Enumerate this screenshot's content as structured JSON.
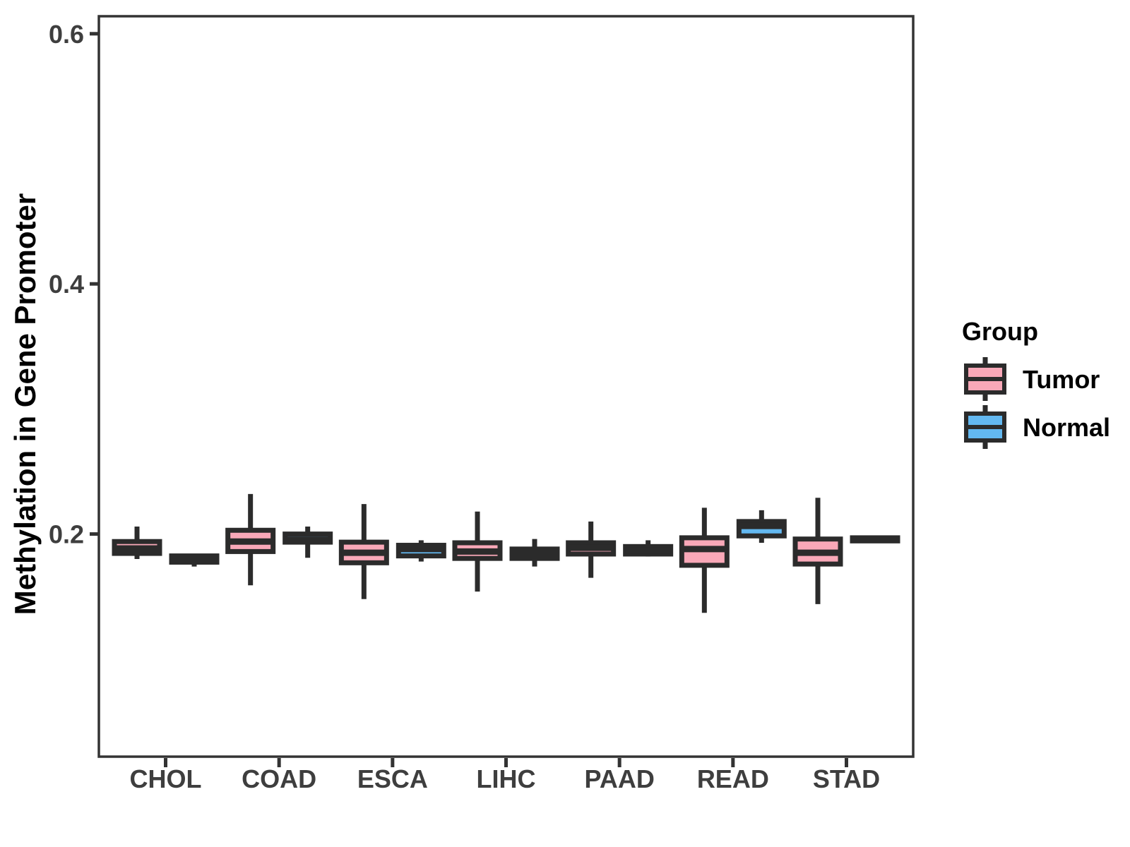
{
  "figure": {
    "background": "#FFFFFF"
  },
  "chart_data": {
    "type": "boxplot",
    "title": "",
    "xlabel": "",
    "ylabel": "Methylation in Gene Promoter",
    "categories": [
      "CHOL",
      "COAD",
      "ESCA",
      "LIHC",
      "PAAD",
      "READ",
      "STAD"
    ],
    "yticks": [
      0.2,
      0.4,
      0.6
    ],
    "ytick_labels": [
      "0.2",
      "0.4",
      "0.6"
    ],
    "ylim": [
      0.022,
      0.614
    ],
    "grid": false,
    "legend": {
      "title": "Group",
      "position": "right",
      "entries": [
        {
          "label": "Tumor",
          "fill": "#F9A8B8"
        },
        {
          "label": "Normal",
          "fill": "#63B8F0"
        }
      ]
    },
    "colors": {
      "tumor_fill": "#F9A8B8",
      "normal_fill": "#63B8F0",
      "box_stroke": "#2B2B2B",
      "axis_line": "#333333",
      "axis_text": "#3E3E3E",
      "title_text": "#000000"
    },
    "series": [
      {
        "name": "Tumor",
        "fill": "#F9A8B8",
        "boxes": [
          {
            "category": "CHOL",
            "lo": 0.18,
            "q1": 0.1845,
            "med": 0.1885,
            "q3": 0.194,
            "hi": 0.206
          },
          {
            "category": "COAD",
            "lo": 0.159,
            "q1": 0.186,
            "med": 0.194,
            "q3": 0.203,
            "hi": 0.232
          },
          {
            "category": "ESCA",
            "lo": 0.148,
            "q1": 0.177,
            "med": 0.185,
            "q3": 0.1935,
            "hi": 0.224
          },
          {
            "category": "LIHC",
            "lo": 0.154,
            "q1": 0.1805,
            "med": 0.186,
            "q3": 0.193,
            "hi": 0.218
          },
          {
            "category": "PAAD",
            "lo": 0.165,
            "q1": 0.184,
            "med": 0.189,
            "q3": 0.193,
            "hi": 0.21
          },
          {
            "category": "READ",
            "lo": 0.137,
            "q1": 0.175,
            "med": 0.188,
            "q3": 0.197,
            "hi": 0.221
          },
          {
            "category": "STAD",
            "lo": 0.144,
            "q1": 0.176,
            "med": 0.185,
            "q3": 0.196,
            "hi": 0.229
          }
        ]
      },
      {
        "name": "Normal",
        "fill": "#63B8F0",
        "boxes": [
          {
            "category": "CHOL",
            "lo": 0.174,
            "q1": 0.1775,
            "med": 0.18,
            "q3": 0.1825,
            "hi": 0.1825
          },
          {
            "category": "COAD",
            "lo": 0.181,
            "q1": 0.1935,
            "med": 0.1955,
            "q3": 0.2,
            "hi": 0.206
          },
          {
            "category": "ESCA",
            "lo": 0.178,
            "q1": 0.1825,
            "med": 0.188,
            "q3": 0.191,
            "hi": 0.195
          },
          {
            "category": "LIHC",
            "lo": 0.174,
            "q1": 0.1805,
            "med": 0.184,
            "q3": 0.188,
            "hi": 0.196
          },
          {
            "category": "PAAD",
            "lo": 0.182,
            "q1": 0.184,
            "med": 0.187,
            "q3": 0.19,
            "hi": 0.195
          },
          {
            "category": "READ",
            "lo": 0.193,
            "q1": 0.1985,
            "med": 0.2065,
            "q3": 0.21,
            "hi": 0.219
          },
          {
            "category": "STAD",
            "lo": 0.1945,
            "q1": 0.1945,
            "med": 0.1955,
            "q3": 0.197,
            "hi": 0.197
          }
        ]
      }
    ]
  }
}
